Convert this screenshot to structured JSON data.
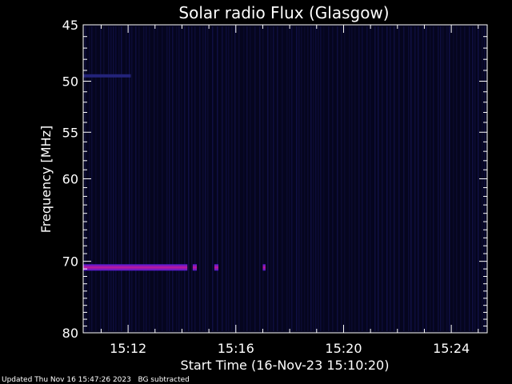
{
  "chart_data": {
    "type": "heatmap",
    "title": "Solar radio Flux (Glasgow)",
    "xlabel": "Start Time (16-Nov-23 15:10:20)",
    "ylabel": "Frequency [MHz]",
    "x_start": "15:10:20",
    "x_end": "15:25:20",
    "xlim_minutes": [
      10.333,
      25.333
    ],
    "ylim": [
      45,
      80
    ],
    "y_scale": "log",
    "y_ticks": [
      45,
      50,
      55,
      60,
      70,
      80
    ],
    "x_ticks": [
      {
        "label": "15:12",
        "minute": 12
      },
      {
        "label": "15:16",
        "minute": 16
      },
      {
        "label": "15:20",
        "minute": 20
      },
      {
        "label": "15:24",
        "minute": 24
      }
    ],
    "background_color": "#05051e",
    "features": [
      {
        "name": "interference-band",
        "frequency": 70.8,
        "from_minute": 10.333,
        "to_minute": 14.2,
        "color": "#c0189a"
      },
      {
        "name": "interference-blip",
        "frequency": 70.8,
        "from_minute": 14.4,
        "to_minute": 14.55,
        "color": "#c0189a"
      },
      {
        "name": "interference-blip",
        "frequency": 70.8,
        "from_minute": 15.2,
        "to_minute": 15.35,
        "color": "#c0189a"
      },
      {
        "name": "interference-blip",
        "frequency": 70.8,
        "from_minute": 17.0,
        "to_minute": 17.1,
        "color": "#c0189a"
      },
      {
        "name": "weak-band",
        "frequency": 49.5,
        "from_minute": 10.333,
        "to_minute": 12.1,
        "color": "#23237a"
      }
    ]
  },
  "footer": {
    "updated": "Updated Thu Nov 16 15:47:26 2023",
    "note": "BG subtracted"
  }
}
